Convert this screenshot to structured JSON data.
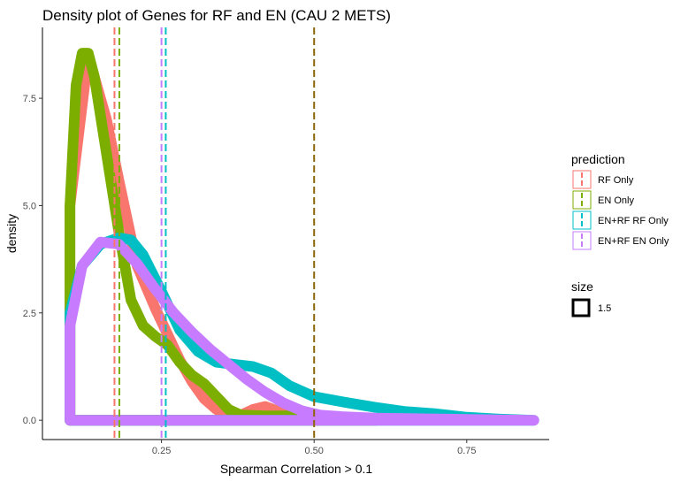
{
  "chart_data": {
    "type": "area",
    "title": "Density plot of Genes for RF and EN (CAU 2 METS)",
    "xlabel": "Spearman Correlation > 0.1",
    "ylabel": "density",
    "xlim": [
      0.055,
      0.885
    ],
    "ylim": [
      -0.45,
      9.15
    ],
    "x_ticks": [
      {
        "value": 0.25,
        "label": "0.25"
      },
      {
        "value": 0.5,
        "label": "0.50"
      },
      {
        "value": 0.75,
        "label": "0.75"
      }
    ],
    "y_ticks": [
      {
        "value": 0.0,
        "label": "0.0"
      },
      {
        "value": 2.5,
        "label": "2.5"
      },
      {
        "value": 5.0,
        "label": "5.0"
      },
      {
        "value": 7.5,
        "label": "7.5"
      }
    ],
    "grid": false,
    "legend_placement": "right",
    "legend": {
      "color_title": "prediction",
      "size_title": "size",
      "size_label": "1.5"
    },
    "series": [
      {
        "name": "RF Only",
        "color": "#F8766D",
        "x": [
          0.1,
          0.1,
          0.13,
          0.16,
          0.18,
          0.21,
          0.24,
          0.26,
          0.28,
          0.3,
          0.32,
          0.34,
          0.36,
          0.38,
          0.4,
          0.42,
          0.44,
          0.46,
          0.5,
          0.55,
          0.6
        ],
        "y": [
          0.0,
          5.0,
          8.5,
          7.0,
          5.6,
          3.6,
          2.6,
          2.0,
          1.4,
          0.9,
          0.5,
          0.25,
          0.1,
          0.12,
          0.25,
          0.32,
          0.22,
          0.1,
          0.05,
          0.02,
          0.0
        ]
      },
      {
        "name": "EN Only",
        "color": "#7CAE00",
        "x": [
          0.1,
          0.1,
          0.11,
          0.12,
          0.13,
          0.14,
          0.16,
          0.18,
          0.2,
          0.22,
          0.24,
          0.26,
          0.28,
          0.3,
          0.32,
          0.34,
          0.36,
          0.38,
          0.42,
          0.46,
          0.5,
          0.55,
          0.6
        ],
        "y": [
          0.0,
          5.0,
          7.8,
          8.55,
          8.55,
          8.0,
          6.2,
          4.4,
          2.8,
          2.2,
          1.95,
          1.75,
          1.35,
          1.05,
          0.85,
          0.55,
          0.25,
          0.12,
          0.1,
          0.1,
          0.05,
          0.02,
          0.0
        ]
      },
      {
        "name": "EN+RF RF Only",
        "color": "#00BFC4",
        "x": [
          0.1,
          0.1,
          0.12,
          0.15,
          0.18,
          0.2,
          0.22,
          0.25,
          0.28,
          0.31,
          0.34,
          0.37,
          0.4,
          0.43,
          0.46,
          0.5,
          0.55,
          0.6,
          0.65,
          0.7,
          0.75,
          0.8,
          0.86
        ],
        "y": [
          0.0,
          2.5,
          3.6,
          4.1,
          4.25,
          4.2,
          3.85,
          3.0,
          2.1,
          1.6,
          1.35,
          1.3,
          1.25,
          1.1,
          0.8,
          0.55,
          0.42,
          0.3,
          0.2,
          0.15,
          0.07,
          0.03,
          0.0
        ]
      },
      {
        "name": "EN+RF EN Only",
        "color": "#C77CFF",
        "x": [
          0.1,
          0.1,
          0.12,
          0.15,
          0.18,
          0.21,
          0.24,
          0.27,
          0.3,
          0.33,
          0.36,
          0.39,
          0.42,
          0.45,
          0.48,
          0.51,
          0.55,
          0.6,
          0.65,
          0.7,
          0.75,
          0.8,
          0.86
        ],
        "y": [
          0.0,
          2.2,
          3.6,
          4.15,
          4.1,
          3.65,
          3.05,
          2.5,
          2.05,
          1.65,
          1.3,
          0.95,
          0.65,
          0.4,
          0.22,
          0.12,
          0.08,
          0.05,
          0.04,
          0.03,
          0.02,
          0.01,
          0.0
        ]
      }
    ],
    "vlines": [
      {
        "x": 0.173,
        "color": "#F8766D",
        "style": "dashed"
      },
      {
        "x": 0.181,
        "color": "#7CAE00",
        "style": "dashed"
      },
      {
        "x": 0.25,
        "color": "#C77CFF",
        "style": "dashed"
      },
      {
        "x": 0.257,
        "color": "#00BFC4",
        "style": "dashed"
      },
      {
        "x": 0.5,
        "color": "#8B6508",
        "style": "dashed"
      }
    ]
  }
}
